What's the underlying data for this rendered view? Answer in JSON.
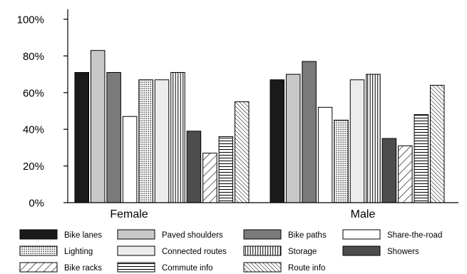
{
  "chart_data": {
    "type": "bar",
    "categories": [
      "Female",
      "Male"
    ],
    "ylim": [
      0,
      100
    ],
    "yticks": [
      "0%",
      "20%",
      "40%",
      "60%",
      "80%",
      "100%"
    ],
    "ytick_values": [
      0,
      20,
      40,
      60,
      80,
      100
    ],
    "grid": false,
    "legend_position": "bottom",
    "series": [
      {
        "name": "Bike lanes",
        "values": [
          71,
          67
        ],
        "fill": "#1a1a1a",
        "pattern": "solid"
      },
      {
        "name": "Paved shoulders",
        "values": [
          83,
          70
        ],
        "fill": "#c8c8c8",
        "pattern": "solid"
      },
      {
        "name": "Bike paths",
        "values": [
          71,
          77
        ],
        "fill": "#7a7a7a",
        "pattern": "solid"
      },
      {
        "name": "Share-the-road",
        "values": [
          47,
          52
        ],
        "fill": "#ffffff",
        "pattern": "solid"
      },
      {
        "name": "Lighting",
        "values": [
          67,
          45
        ],
        "fill": "#ffffff",
        "pattern": "dots"
      },
      {
        "name": "Connected routes",
        "values": [
          67,
          67
        ],
        "fill": "#ececec",
        "pattern": "solid"
      },
      {
        "name": "Storage",
        "values": [
          71,
          70
        ],
        "fill": "#ffffff",
        "pattern": "vlines"
      },
      {
        "name": "Showers",
        "values": [
          39,
          35
        ],
        "fill": "#4d4d4d",
        "pattern": "solid"
      },
      {
        "name": "Bike racks",
        "values": [
          27,
          31
        ],
        "fill": "#ffffff",
        "pattern": "fdiag"
      },
      {
        "name": "Commute info",
        "values": [
          36,
          48
        ],
        "fill": "#ffffff",
        "pattern": "hlines"
      },
      {
        "name": "Route info",
        "values": [
          55,
          64
        ],
        "fill": "#ffffff",
        "pattern": "bdiag"
      }
    ]
  }
}
